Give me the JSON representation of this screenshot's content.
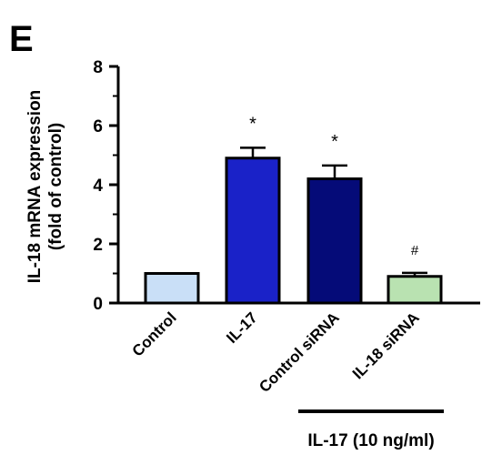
{
  "panel_label": "E",
  "chart_data": {
    "type": "bar",
    "categories": [
      "Control",
      "IL-17",
      "Control siRNA",
      "IL-18 siRNA"
    ],
    "values": [
      1.0,
      4.9,
      4.2,
      0.9
    ],
    "errors": [
      0,
      0.35,
      0.45,
      0.12
    ],
    "annotations": [
      "",
      "*",
      "*",
      "#"
    ],
    "bar_colors": [
      "#c9dff7",
      "#1a22c8",
      "#050b78",
      "#b9e2b1"
    ],
    "ylabel_line1": "IL-18 mRNA expression",
    "ylabel_line2": "(fold of control)",
    "ylim": [
      0,
      8
    ],
    "yticks": [
      "0",
      "2",
      "4",
      "6",
      "8"
    ],
    "treatment_label": "IL-17 (10 ng/ml)",
    "grid": false
  }
}
